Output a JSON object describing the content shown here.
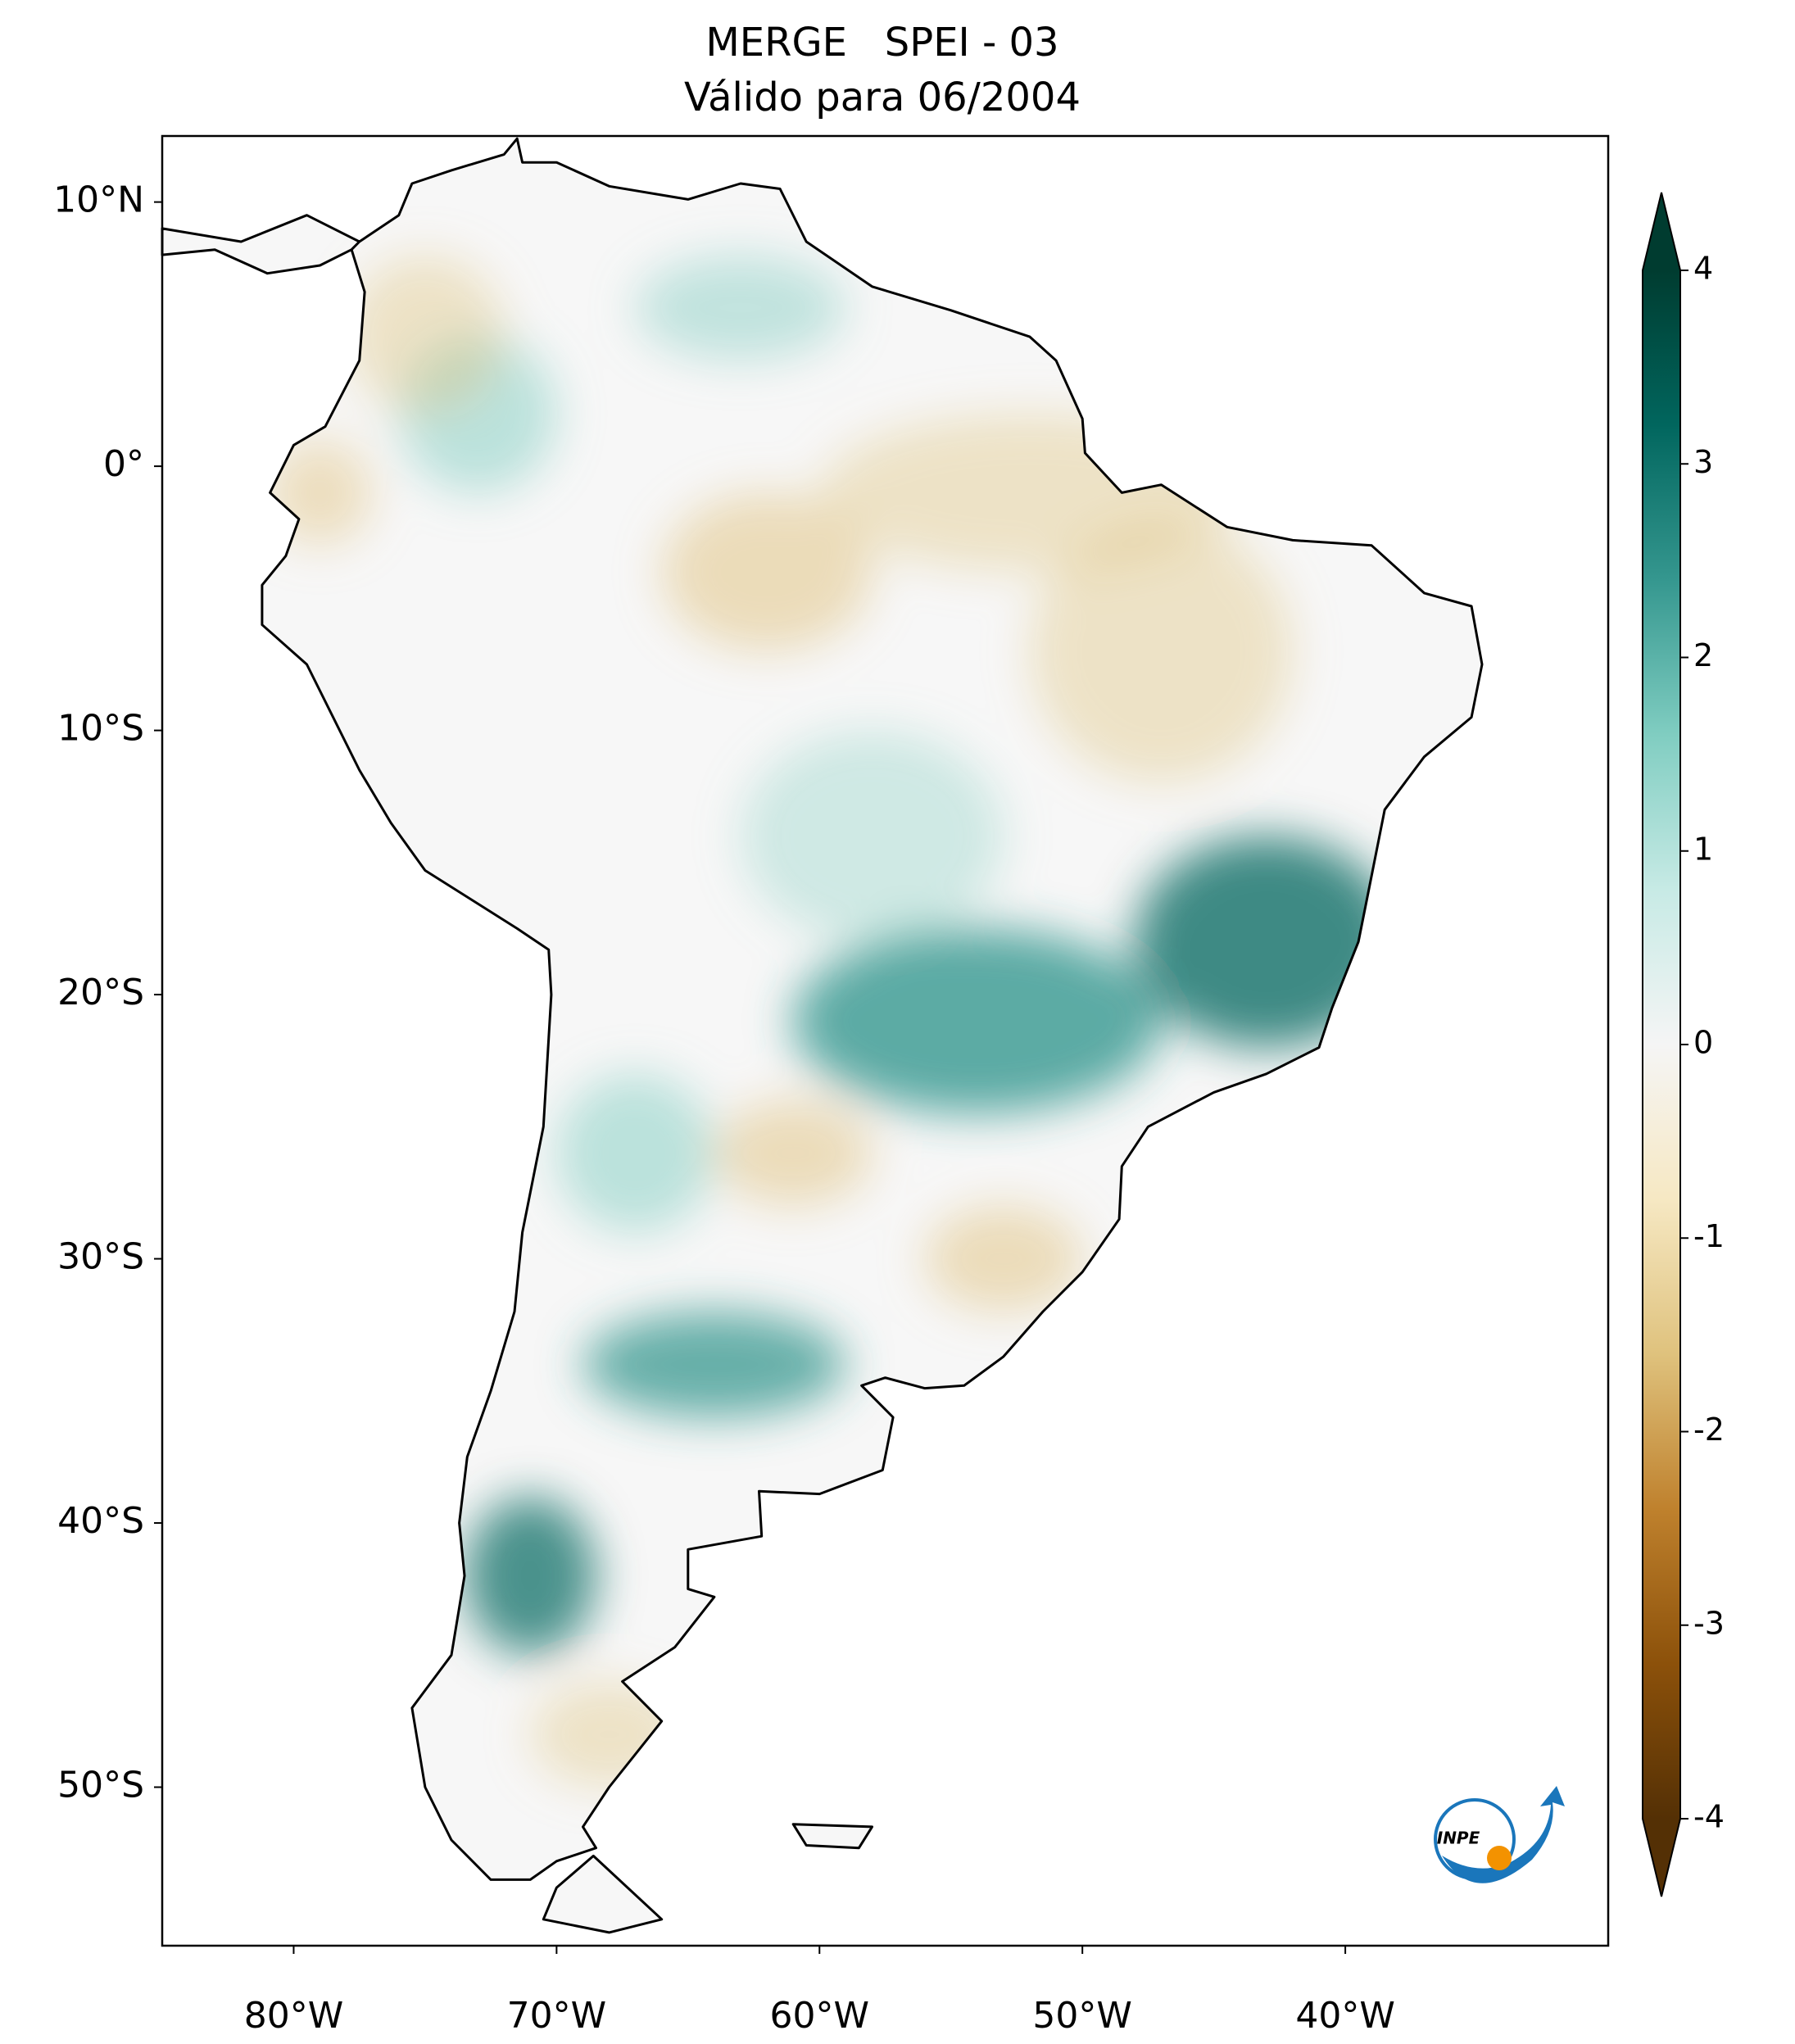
{
  "title": "MERGE   SPEI - 03",
  "subtitle": "Válido para 06/2004",
  "map": {
    "xlim": [
      -85,
      -30
    ],
    "ylim": [
      -56,
      12.5
    ],
    "xticks": [
      {
        "value": -80,
        "label": "80°W"
      },
      {
        "value": -70,
        "label": "70°W"
      },
      {
        "value": -60,
        "label": "60°W"
      },
      {
        "value": -50,
        "label": "50°W"
      },
      {
        "value": -40,
        "label": "40°W"
      }
    ],
    "yticks": [
      {
        "value": 10,
        "label": "10°N"
      },
      {
        "value": 0,
        "label": "0°"
      },
      {
        "value": -10,
        "label": "10°S"
      },
      {
        "value": -20,
        "label": "20°S"
      },
      {
        "value": -30,
        "label": "30°S"
      },
      {
        "value": -40,
        "label": "40°S"
      },
      {
        "value": -50,
        "label": "50°S"
      }
    ]
  },
  "colorbar": {
    "lim": [
      -4,
      4
    ],
    "ticks": [
      -4,
      -3,
      -2,
      -1,
      0,
      1,
      2,
      3,
      4
    ],
    "colors": [
      "#543005",
      "#8c510a",
      "#bf812d",
      "#dfc27d",
      "#f6e8c3",
      "#f5f5f5",
      "#c7eae5",
      "#80cdc1",
      "#35978f",
      "#01665e",
      "#003c30"
    ]
  },
  "logo": "INPE"
}
